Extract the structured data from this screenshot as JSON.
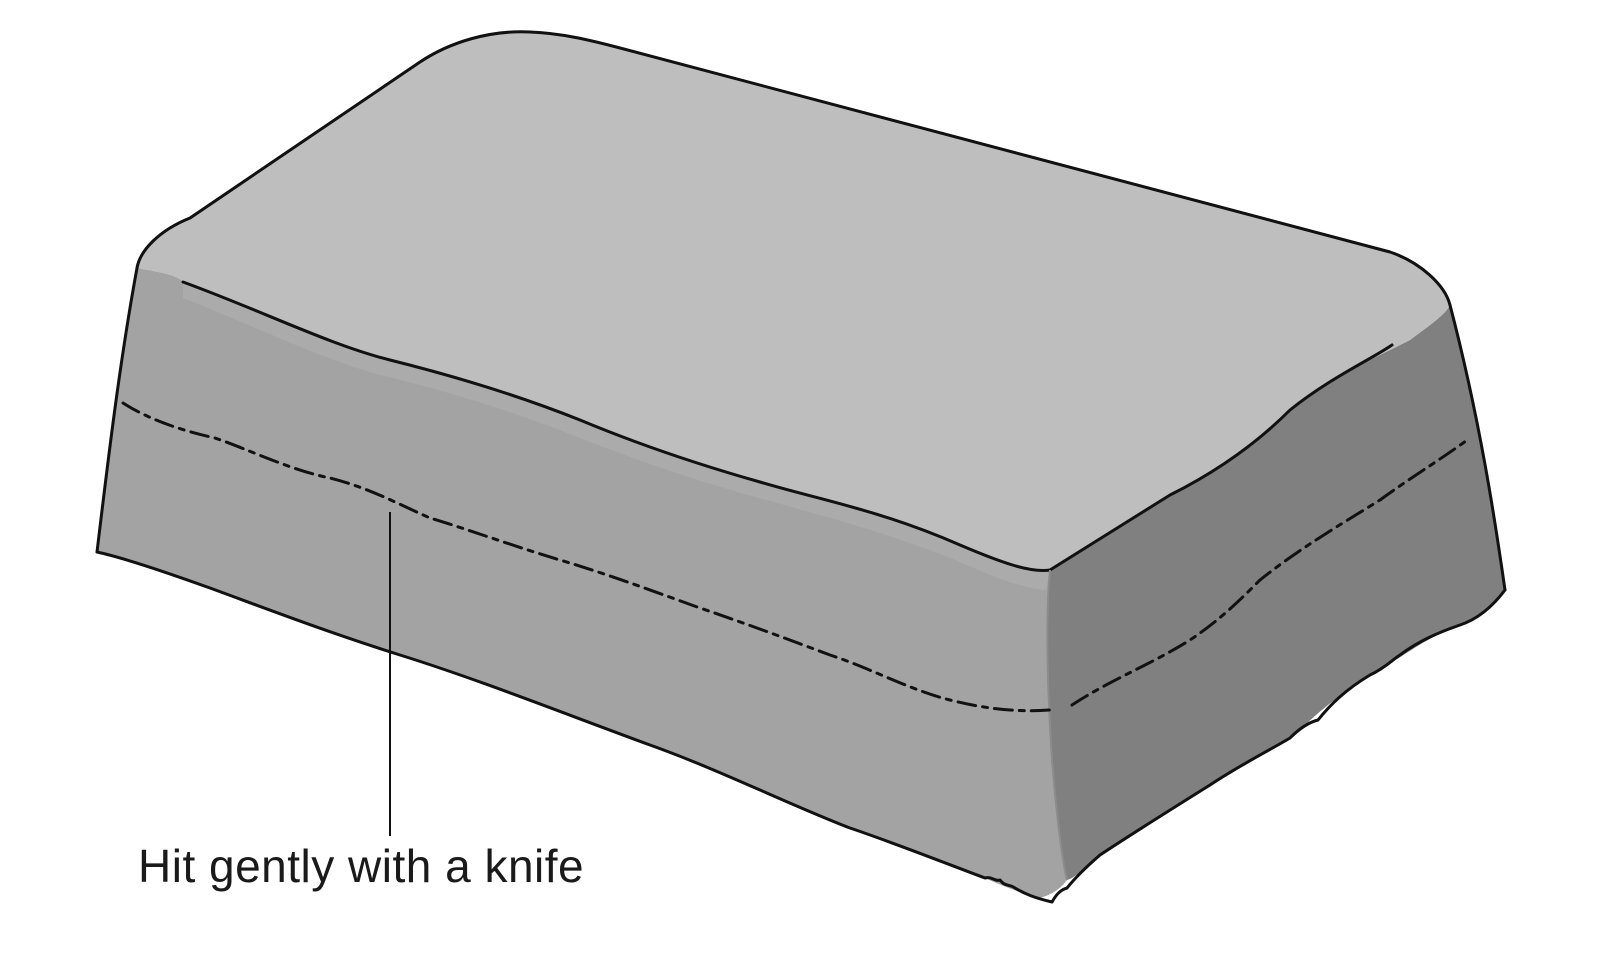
{
  "figure": {
    "colors": {
      "top_face": "#bebebe",
      "front_face": "#a3a3a3",
      "side_face": "#808080",
      "outline": "#111111",
      "background": "#ffffff"
    },
    "callout": {
      "label": "Hit gently with a knife"
    }
  }
}
